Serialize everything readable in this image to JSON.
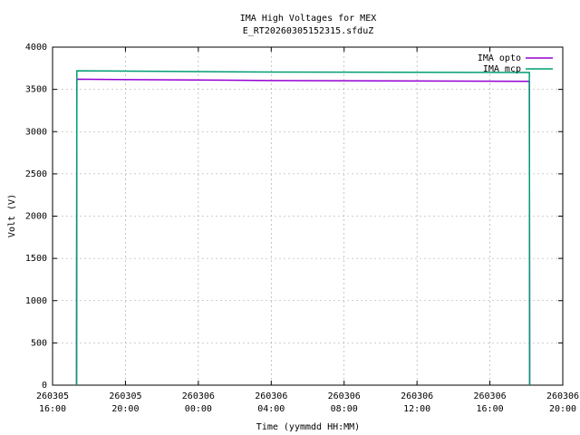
{
  "chart_data": {
    "type": "line",
    "title": [
      "IMA High Voltages for MEX",
      "E_RT20260305152315.sfduZ"
    ],
    "x_label": "Time (yymmdd HH:MM)",
    "y_label": "Volt (V)",
    "x": [
      "260305 17:19",
      "260305 17:20",
      "260306 04:00",
      "260306 18:10",
      "260306 18:11"
    ],
    "series": [
      {
        "name": "IMA opto",
        "color": "#9400d3",
        "values": [
          0,
          3620,
          3605,
          3595,
          0
        ]
      },
      {
        "name": "IMA mcp",
        "color": "#009e73",
        "values": [
          0,
          3720,
          3705,
          3700,
          0
        ]
      }
    ],
    "xlim": [
      "260305 16:00",
      "260306 20:00"
    ],
    "xticks": [
      "260305 16:00",
      "260305 20:00",
      "260306 00:00",
      "260306 04:00",
      "260306 08:00",
      "260306 12:00",
      "260306 16:00",
      "260306 20:00"
    ],
    "ylim": [
      0,
      4000
    ],
    "yticks": [
      0,
      500,
      1000,
      1500,
      2000,
      2500,
      3000,
      3500,
      4000
    ],
    "grid": true,
    "legend": "top-right"
  }
}
